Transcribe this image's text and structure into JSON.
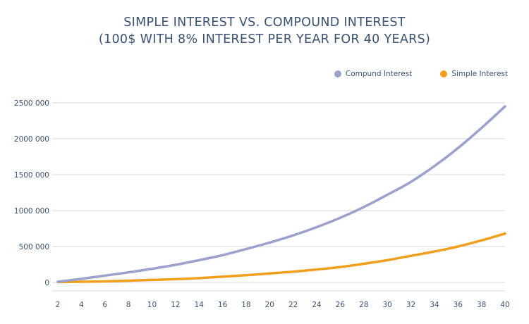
{
  "chart_data": {
    "type": "line",
    "title": "SIMPLE INTEREST VS. COMPOUND INTEREST",
    "subtitle": "(100$ WITH 8% INTEREST PER YEAR FOR 40 YEARS)",
    "xlabel": "",
    "ylabel": "",
    "x": [
      2,
      4,
      6,
      8,
      10,
      12,
      14,
      16,
      18,
      20,
      22,
      24,
      26,
      28,
      30,
      32,
      34,
      36,
      38,
      40
    ],
    "x_tick_labels": [
      "2",
      "4",
      "6",
      "8",
      "10",
      "12",
      "14",
      "16",
      "18",
      "20",
      "22",
      "24",
      "26",
      "28",
      "30",
      "32",
      "34",
      "36",
      "38",
      "40"
    ],
    "y_tick_labels": [
      "0",
      "500 000",
      "1000 000",
      "1500 000",
      "2000 000",
      "2500 000"
    ],
    "y_ticks": [
      0,
      500000,
      1000000,
      1500000,
      2000000,
      2500000
    ],
    "xlim": [
      2,
      40
    ],
    "ylim": [
      0,
      2500000
    ],
    "grid": "horizontal",
    "legend_position": "top-right",
    "series": [
      {
        "name": "Compund Interest",
        "color": "#9ba1cc",
        "values": [
          10000,
          50000,
          95000,
          140000,
          190000,
          245000,
          310000,
          380000,
          465000,
          555000,
          655000,
          770000,
          900000,
          1050000,
          1220000,
          1400000,
          1620000,
          1870000,
          2150000,
          2450000
        ]
      },
      {
        "name": "Simple Interest",
        "color": "#f29f1d",
        "values": [
          5000,
          10000,
          15000,
          25000,
          35000,
          45000,
          60000,
          80000,
          100000,
          125000,
          150000,
          180000,
          215000,
          260000,
          310000,
          370000,
          430000,
          500000,
          585000,
          680000
        ]
      }
    ]
  }
}
